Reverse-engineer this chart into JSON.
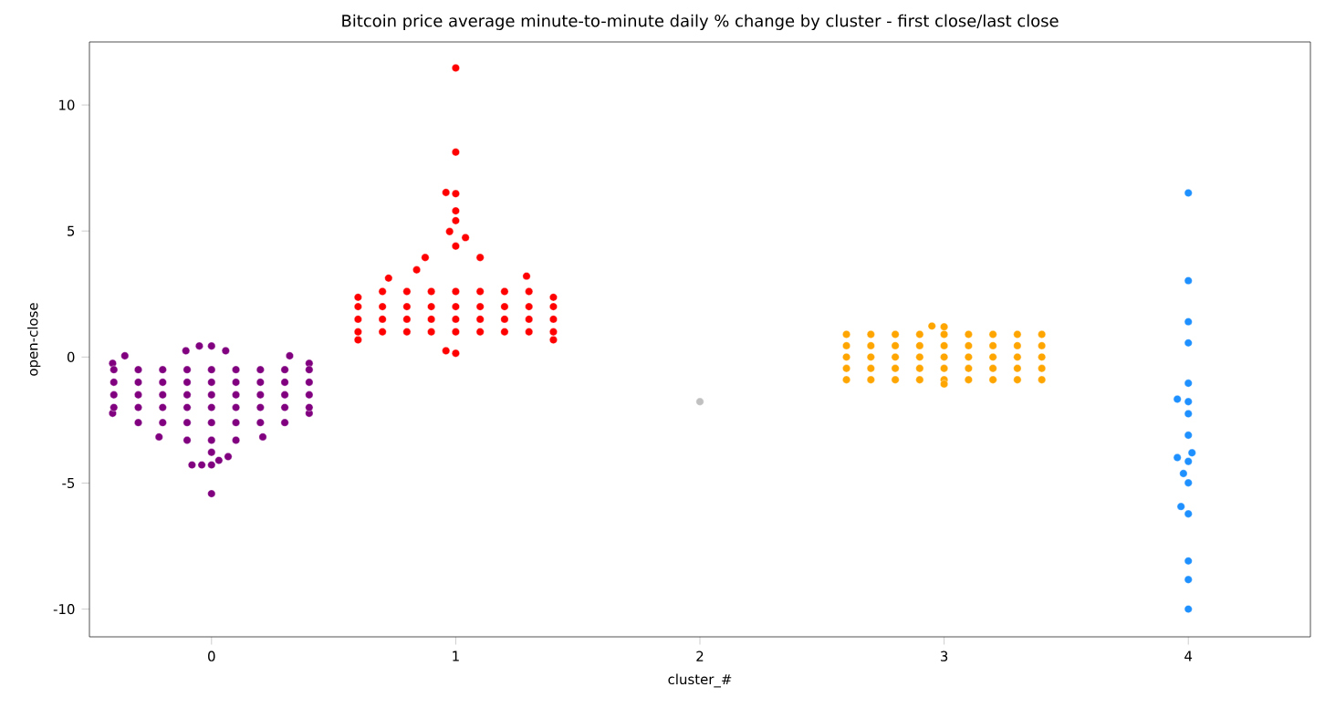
{
  "chart_data": {
    "type": "scatter",
    "title": "Bitcoin price average minute-to-minute daily % change by cluster - first close/last close",
    "xlabel": "cluster_#",
    "ylabel": "open-close",
    "xlim": [
      -0.5,
      4.5
    ],
    "xticks": [
      0,
      1,
      2,
      3,
      4
    ],
    "ylim": [
      -11.1,
      12.5
    ],
    "yticks": [
      -10,
      -5,
      0,
      5,
      10
    ],
    "grid": false,
    "series": [
      {
        "color": "#800080",
        "x": [
          -0.05,
          0,
          -0.105,
          0.058,
          -0.355,
          0.32,
          -0.405,
          0.4,
          -0.405,
          0.4,
          -0.4,
          -0.3,
          -0.2,
          -0.1,
          0,
          0.1,
          0.2,
          0.3,
          0.4,
          -0.4,
          -0.3,
          -0.2,
          -0.1,
          0,
          0.1,
          0.2,
          0.3,
          0.4,
          -0.4,
          -0.3,
          -0.2,
          -0.1,
          0,
          0.1,
          0.2,
          0.3,
          0.4,
          -0.4,
          -0.3,
          -0.2,
          -0.1,
          0,
          0.1,
          0.2,
          0.3,
          0.4,
          -0.3,
          -0.2,
          -0.1,
          0,
          0.1,
          0.2,
          0.3,
          -0.215,
          0.21,
          -0.1,
          0,
          0.1,
          0,
          0.03,
          0.068,
          -0.08,
          -0.04,
          0,
          0
        ],
        "values": [
          0.44,
          0.44,
          0.25,
          0.25,
          0.05,
          0.05,
          -0.25,
          -0.25,
          -2.23,
          -2.23,
          -0.5,
          -0.5,
          -0.5,
          -0.5,
          -0.5,
          -0.5,
          -0.5,
          -0.5,
          -0.5,
          -1.0,
          -1.0,
          -1.0,
          -1.0,
          -1.0,
          -1.0,
          -1.0,
          -1.0,
          -1.0,
          -1.5,
          -1.5,
          -1.5,
          -1.5,
          -1.5,
          -1.5,
          -1.5,
          -1.5,
          -1.5,
          -2.0,
          -2.0,
          -2.0,
          -2.0,
          -2.0,
          -2.0,
          -2.0,
          -2.0,
          -2.0,
          -2.6,
          -2.6,
          -2.6,
          -2.6,
          -2.6,
          -2.6,
          -2.6,
          -3.17,
          -3.17,
          -3.3,
          -3.3,
          -3.3,
          -3.78,
          -4.1,
          -3.95,
          -4.28,
          -4.28,
          -4.28,
          -5.42
        ]
      },
      {
        "color": "#ff0000",
        "x": [
          1,
          1,
          0.96,
          1,
          1,
          1,
          0.975,
          1.04,
          1,
          0.6,
          1.4,
          0.6,
          1.4,
          0.96,
          1,
          1.29,
          0.725,
          0.84,
          0.875,
          1.1,
          0.6,
          0.7,
          0.8,
          0.9,
          1,
          1.1,
          1.2,
          1.3,
          1.4,
          0.6,
          0.7,
          0.8,
          0.9,
          1,
          1.1,
          1.2,
          1.3,
          1.4,
          0.6,
          0.7,
          0.8,
          0.9,
          1,
          1.1,
          1.2,
          1.3,
          1.4,
          0.7,
          0.8,
          0.9,
          1,
          1.1,
          1.2,
          1.3
        ],
        "values": [
          11.47,
          8.13,
          6.53,
          6.48,
          5.8,
          5.41,
          4.98,
          4.74,
          4.4,
          2.37,
          2.37,
          0.68,
          0.68,
          0.25,
          0.15,
          3.21,
          3.13,
          3.46,
          3.95,
          3.95,
          1.0,
          1.0,
          1.0,
          1.0,
          1.0,
          1.0,
          1.0,
          1.0,
          1.0,
          1.5,
          1.5,
          1.5,
          1.5,
          1.5,
          1.5,
          1.5,
          1.5,
          1.5,
          2.0,
          2.0,
          2.0,
          2.0,
          2.0,
          2.0,
          2.0,
          2.0,
          2.0,
          2.6,
          2.6,
          2.6,
          2.6,
          2.6,
          2.6,
          2.6
        ]
      },
      {
        "color": "#c0c0c0",
        "x": [
          2
        ],
        "values": [
          -1.77
        ]
      },
      {
        "color": "#ffa500",
        "x": [
          2.6,
          2.7,
          2.8,
          2.9,
          3.0,
          3.1,
          3.2,
          3.3,
          3.4,
          2.6,
          2.7,
          2.8,
          2.9,
          3.0,
          3.1,
          3.2,
          3.3,
          3.4,
          2.6,
          2.7,
          2.8,
          2.9,
          3.0,
          3.1,
          3.2,
          3.3,
          3.4,
          2.6,
          2.7,
          2.8,
          2.9,
          3.0,
          3.1,
          3.2,
          3.3,
          3.4,
          2.6,
          2.7,
          2.8,
          2.9,
          3.0,
          3.1,
          3.2,
          3.3,
          3.4,
          2.95,
          3.0,
          3.0
        ],
        "values": [
          0.9,
          0.9,
          0.9,
          0.9,
          0.9,
          0.9,
          0.9,
          0.9,
          0.9,
          0.45,
          0.45,
          0.45,
          0.45,
          0.45,
          0.45,
          0.45,
          0.45,
          0.45,
          0,
          0,
          0,
          0,
          0,
          0,
          0,
          0,
          0,
          -0.45,
          -0.45,
          -0.45,
          -0.45,
          -0.45,
          -0.45,
          -0.45,
          -0.45,
          -0.45,
          -0.9,
          -0.9,
          -0.9,
          -0.9,
          -0.9,
          -0.9,
          -0.9,
          -0.9,
          -0.9,
          1.23,
          1.2,
          -1.07
        ]
      },
      {
        "color": "#1e90ff",
        "x": [
          4,
          4,
          4,
          4,
          4,
          3.955,
          4,
          4,
          4,
          4.015,
          3.955,
          4,
          3.98,
          4,
          3.97,
          4,
          4,
          4,
          4
        ],
        "values": [
          6.51,
          3.03,
          1.4,
          0.56,
          -1.04,
          -1.67,
          -1.77,
          -2.25,
          -3.1,
          -3.8,
          -3.99,
          -4.14,
          -4.62,
          -4.99,
          -5.93,
          -6.22,
          -8.09,
          -8.83,
          -10.0
        ]
      }
    ]
  }
}
